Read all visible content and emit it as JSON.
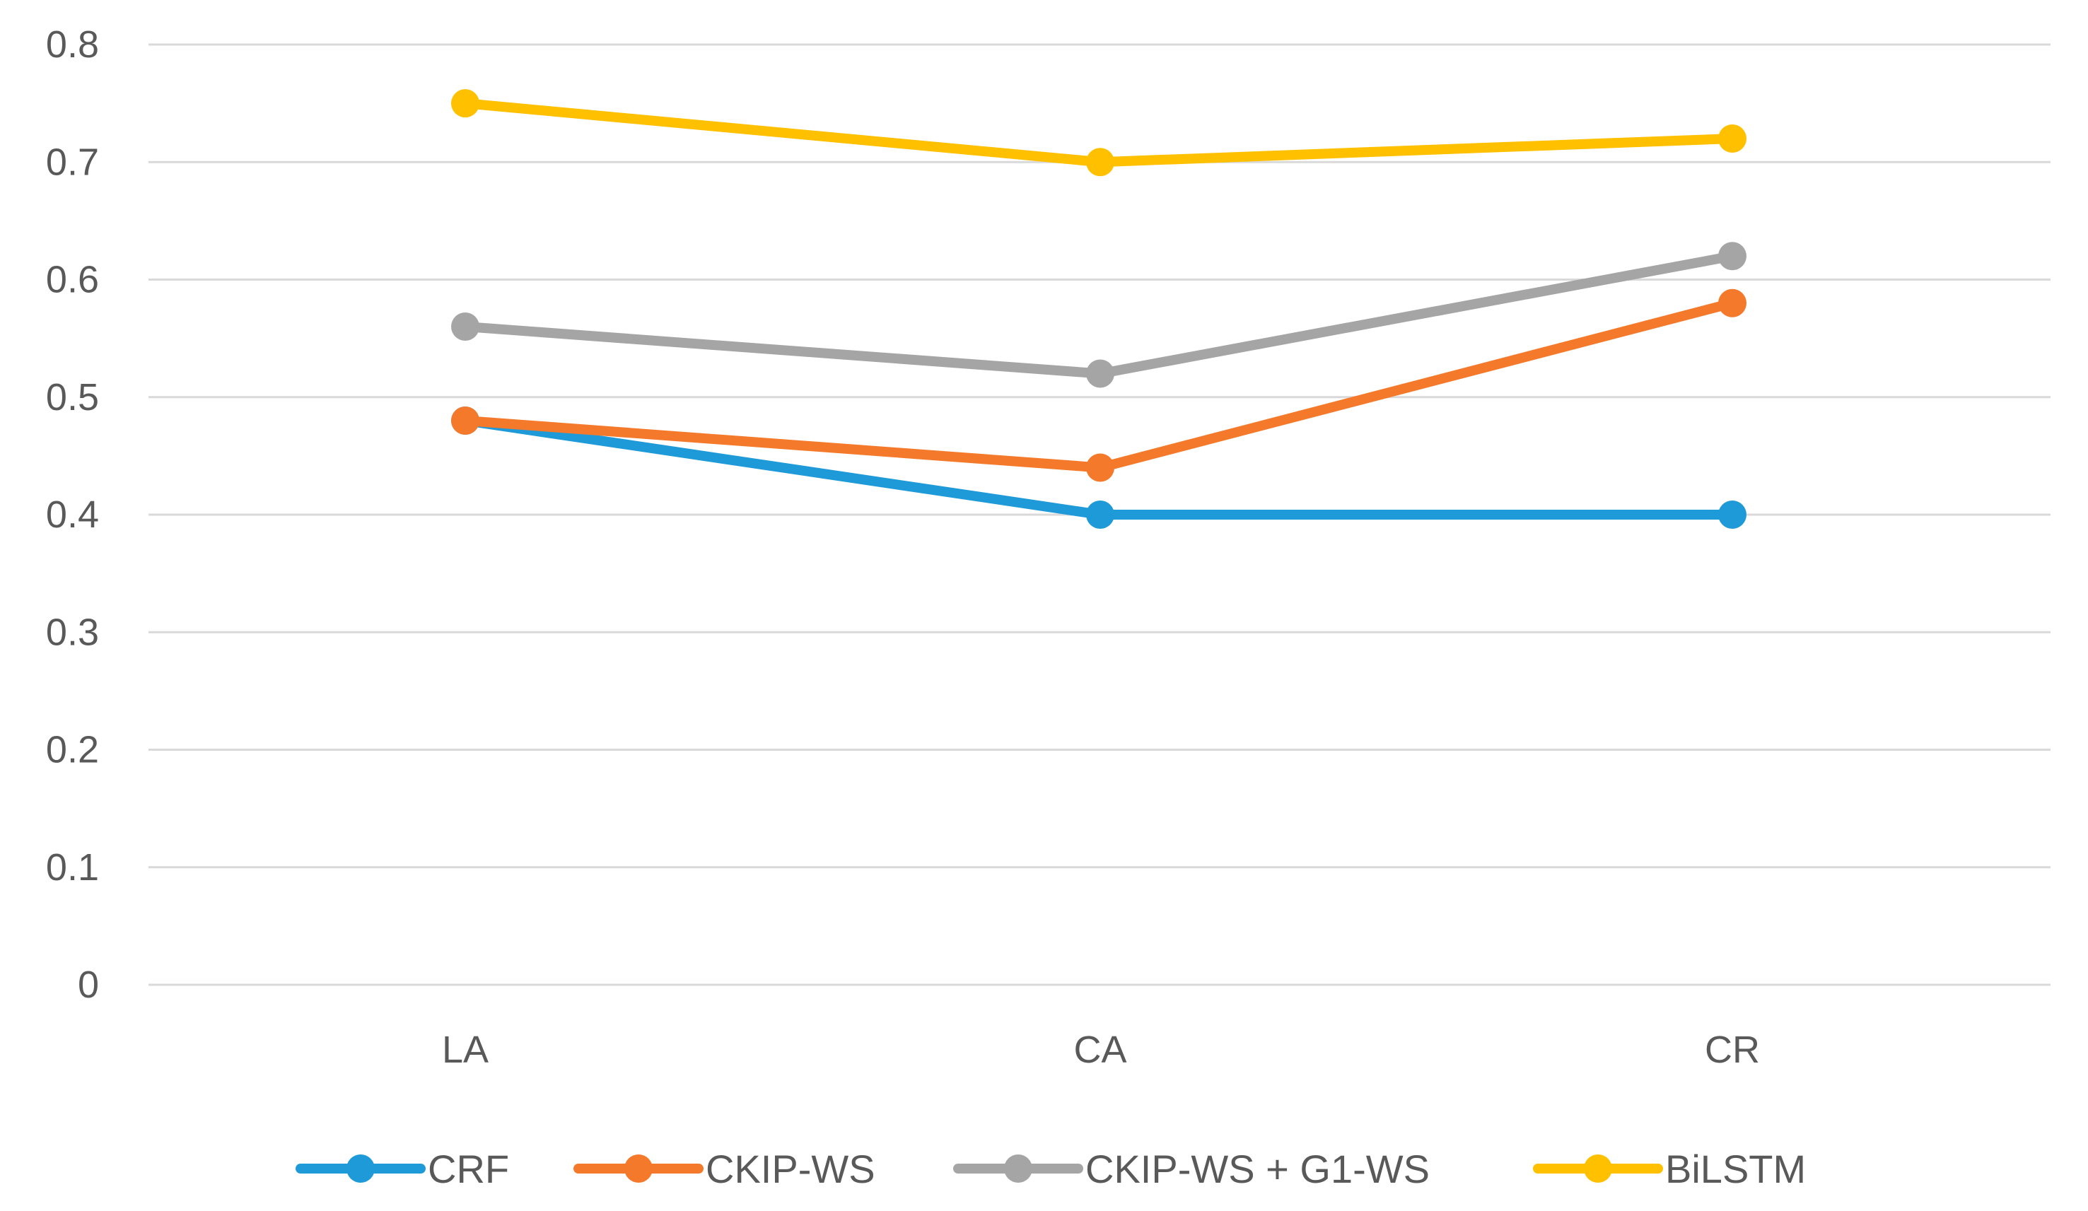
{
  "chart_data": {
    "type": "line",
    "title": "",
    "xlabel": "",
    "ylabel": "",
    "categories": [
      "LA",
      "CA",
      "CR"
    ],
    "ylim": [
      0,
      0.8
    ],
    "yticks": [
      "0",
      "0.1",
      "0.2",
      "0.3",
      "0.4",
      "0.5",
      "0.6",
      "0.7",
      "0.8"
    ],
    "grid": true,
    "legend_position": "bottom",
    "series": [
      {
        "name": "CRF",
        "values": [
          0.48,
          0.4,
          0.4
        ],
        "color": "#1f9ad9"
      },
      {
        "name": "CKIP-WS",
        "values": [
          0.48,
          0.44,
          0.58
        ],
        "color": "#f5792a"
      },
      {
        "name": "CKIP-WS + G1-WS",
        "values": [
          0.56,
          0.52,
          0.62
        ],
        "color": "#a5a5a5"
      },
      {
        "name": "BiLSTM",
        "values": [
          0.75,
          0.7,
          0.72
        ],
        "color": "#ffc000"
      }
    ]
  }
}
